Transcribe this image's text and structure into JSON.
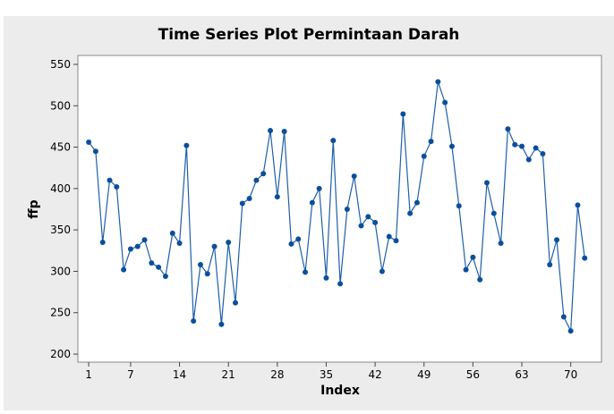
{
  "chart_data": {
    "type": "line",
    "title": "Time Series Plot Permintaan Darah",
    "x_label": "Index",
    "y_label": "ffp",
    "x": [
      1,
      2,
      3,
      4,
      5,
      6,
      7,
      8,
      9,
      10,
      11,
      12,
      13,
      14,
      15,
      16,
      17,
      18,
      19,
      20,
      21,
      22,
      23,
      24,
      25,
      26,
      27,
      28,
      29,
      30,
      31,
      32,
      33,
      34,
      35,
      36,
      37,
      38,
      39,
      40,
      41,
      42,
      43,
      44,
      45,
      46,
      47,
      48,
      49,
      50,
      51,
      52,
      53,
      54,
      55,
      56,
      57,
      58,
      59,
      60,
      61,
      62,
      63,
      64,
      65,
      66,
      67,
      68,
      69,
      70,
      71,
      72
    ],
    "series": [
      {
        "name": "ffp",
        "color": "#1f5fa8",
        "values": [
          456,
          445,
          335,
          410,
          402,
          302,
          327,
          330,
          338,
          310,
          305,
          294,
          346,
          334,
          452,
          240,
          308,
          297,
          330,
          236,
          335,
          262,
          382,
          388,
          410,
          418,
          470,
          390,
          469,
          333,
          339,
          299,
          383,
          400,
          292,
          458,
          285,
          375,
          415,
          355,
          366,
          359,
          300,
          342,
          337,
          490,
          370,
          383,
          439,
          457,
          529,
          504,
          451,
          379,
          302,
          317,
          290,
          407,
          370,
          334,
          472,
          453,
          451,
          435,
          449,
          442,
          308,
          338,
          245,
          228,
          380,
          316
        ]
      }
    ],
    "xlim": [
      -0.55,
      74.4
    ],
    "ylim": [
      190.3,
      560.8
    ],
    "xticks": [
      1,
      7,
      14,
      21,
      28,
      35,
      42,
      49,
      56,
      63,
      70
    ],
    "yticks": [
      200,
      250,
      300,
      350,
      400,
      450,
      500,
      550
    ]
  }
}
